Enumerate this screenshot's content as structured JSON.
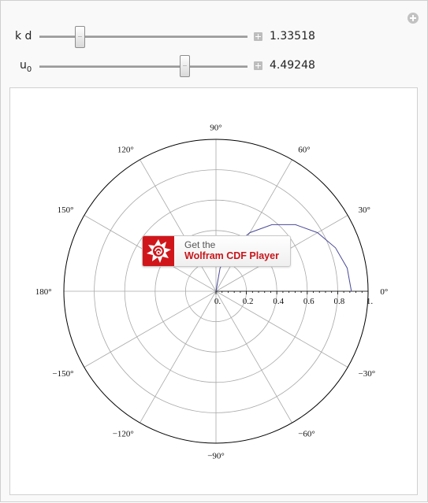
{
  "controls": [
    {
      "label": "k d",
      "subscript": "",
      "value": "1.33518",
      "level": 0.18
    },
    {
      "label": "u",
      "subscript": "0",
      "value": "4.49248",
      "level": 0.71
    }
  ],
  "overlay": {
    "line1": "Get the",
    "line2": "Wolfram CDF Player",
    "icon": "wolfram-spikey-icon"
  },
  "chart_data": {
    "type": "polar",
    "angle_labels": [
      {
        "deg": 0,
        "text": "0°"
      },
      {
        "deg": 30,
        "text": "30°"
      },
      {
        "deg": 60,
        "text": "60°"
      },
      {
        "deg": 90,
        "text": "90°"
      },
      {
        "deg": 120,
        "text": "120°"
      },
      {
        "deg": 150,
        "text": "150°"
      },
      {
        "deg": 180,
        "text": "180°"
      },
      {
        "deg": -150,
        "text": "−150°"
      },
      {
        "deg": -120,
        "text": "−120°"
      },
      {
        "deg": -90,
        "text": "−90°"
      },
      {
        "deg": -60,
        "text": "−60°"
      },
      {
        "deg": -30,
        "text": "−30°"
      }
    ],
    "radial_ticks": [
      {
        "r": 0,
        "text": "0."
      },
      {
        "r": 0.2,
        "text": "0.2"
      },
      {
        "r": 0.4,
        "text": "0.4"
      },
      {
        "r": 0.6,
        "text": "0.6"
      },
      {
        "r": 0.8,
        "text": "0.8"
      },
      {
        "r": 1.0,
        "text": "1."
      }
    ],
    "rlim": [
      0,
      1
    ],
    "grid": true,
    "curve": {
      "color": "#4a4a9a",
      "points": [
        {
          "theta_deg": 0,
          "r": 0.89
        },
        {
          "theta_deg": 10,
          "r": 0.876
        },
        {
          "theta_deg": 20,
          "r": 0.836
        },
        {
          "theta_deg": 30,
          "r": 0.771
        },
        {
          "theta_deg": 40,
          "r": 0.682
        },
        {
          "theta_deg": 50,
          "r": 0.572
        },
        {
          "theta_deg": 60,
          "r": 0.445
        },
        {
          "theta_deg": 70,
          "r": 0.304
        },
        {
          "theta_deg": 80,
          "r": 0.155
        },
        {
          "theta_deg": 90,
          "r": 0.0
        }
      ]
    }
  },
  "colors": {
    "grid": "#a8a8a8",
    "outer_circle": "#000000",
    "curve": "#4a4a9a",
    "cdf_red": "#d1161b"
  }
}
